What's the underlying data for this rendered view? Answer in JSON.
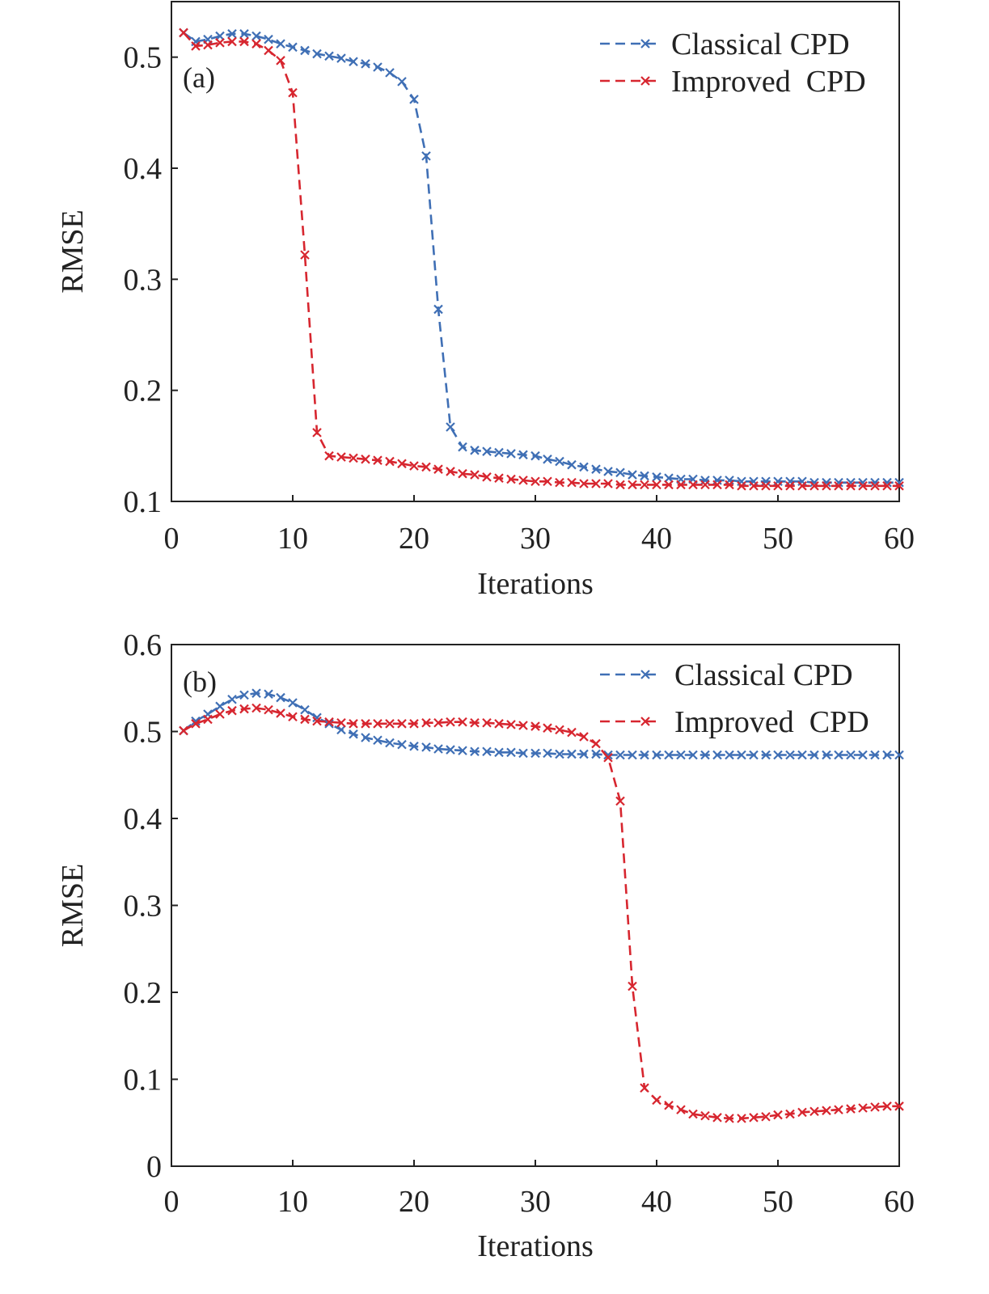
{
  "colors": {
    "classical": "#3f6fb5",
    "improved": "#d7262f",
    "axis": "#222222"
  },
  "chart_data": [
    {
      "type": "line",
      "panel_label": "(a)",
      "xlabel": "Iterations",
      "ylabel": "RMSE",
      "xlim": [
        0,
        60
      ],
      "ylim": [
        0.1,
        0.55
      ],
      "xticks": [
        0,
        10,
        20,
        30,
        40,
        50,
        60
      ],
      "xtick_labels": [
        "0",
        "10",
        "20",
        "30",
        "40",
        "50",
        "60"
      ],
      "yticks": [
        0.1,
        0.2,
        0.3,
        0.4,
        0.5
      ],
      "ytick_labels": [
        "0.1",
        "0.2",
        "0.3",
        "0.4",
        "0.5"
      ],
      "legend_position": "top-right",
      "series": [
        {
          "name": "Classical CPD",
          "x": [
            1,
            2,
            3,
            4,
            5,
            6,
            7,
            8,
            9,
            10,
            11,
            12,
            13,
            14,
            15,
            16,
            17,
            18,
            19,
            20,
            21,
            22,
            23,
            24,
            25,
            26,
            27,
            28,
            29,
            30,
            31,
            32,
            33,
            34,
            35,
            36,
            37,
            38,
            39,
            40,
            41,
            42,
            43,
            44,
            45,
            46,
            47,
            48,
            49,
            50,
            51,
            52,
            53,
            54,
            55,
            56,
            57,
            58,
            59,
            60
          ],
          "y": [
            0.522,
            0.514,
            0.516,
            0.519,
            0.521,
            0.521,
            0.519,
            0.516,
            0.512,
            0.509,
            0.506,
            0.503,
            0.501,
            0.499,
            0.496,
            0.494,
            0.491,
            0.486,
            0.478,
            0.462,
            0.411,
            0.273,
            0.167,
            0.149,
            0.146,
            0.145,
            0.144,
            0.143,
            0.142,
            0.141,
            0.138,
            0.136,
            0.133,
            0.131,
            0.129,
            0.127,
            0.126,
            0.124,
            0.123,
            0.122,
            0.121,
            0.12,
            0.12,
            0.119,
            0.119,
            0.119,
            0.118,
            0.118,
            0.118,
            0.118,
            0.118,
            0.118,
            0.117,
            0.117,
            0.117,
            0.117,
            0.117,
            0.117,
            0.117,
            0.117
          ]
        },
        {
          "name": "Improved  CPD",
          "x": [
            1,
            2,
            3,
            4,
            5,
            6,
            7,
            8,
            9,
            10,
            11,
            12,
            13,
            14,
            15,
            16,
            17,
            18,
            19,
            20,
            21,
            22,
            23,
            24,
            25,
            26,
            27,
            28,
            29,
            30,
            31,
            32,
            33,
            34,
            35,
            36,
            37,
            38,
            39,
            40,
            41,
            42,
            43,
            44,
            45,
            46,
            47,
            48,
            49,
            50,
            51,
            52,
            53,
            54,
            55,
            56,
            57,
            58,
            59,
            60
          ],
          "y": [
            0.522,
            0.51,
            0.511,
            0.513,
            0.514,
            0.514,
            0.512,
            0.506,
            0.497,
            0.468,
            0.322,
            0.162,
            0.141,
            0.14,
            0.139,
            0.138,
            0.137,
            0.136,
            0.134,
            0.132,
            0.131,
            0.129,
            0.127,
            0.125,
            0.124,
            0.122,
            0.121,
            0.12,
            0.119,
            0.118,
            0.118,
            0.117,
            0.117,
            0.116,
            0.116,
            0.116,
            0.115,
            0.115,
            0.115,
            0.115,
            0.115,
            0.115,
            0.115,
            0.115,
            0.115,
            0.115,
            0.114,
            0.114,
            0.114,
            0.114,
            0.114,
            0.114,
            0.114,
            0.114,
            0.114,
            0.114,
            0.114,
            0.114,
            0.114,
            0.114
          ]
        }
      ]
    },
    {
      "type": "line",
      "panel_label": "(b)",
      "xlabel": "Iterations",
      "ylabel": "RMSE",
      "xlim": [
        0,
        60
      ],
      "ylim": [
        0,
        0.6
      ],
      "xticks": [
        0,
        10,
        20,
        30,
        40,
        50,
        60
      ],
      "xtick_labels": [
        "0",
        "10",
        "20",
        "30",
        "40",
        "50",
        "60"
      ],
      "yticks": [
        0,
        0.1,
        0.2,
        0.3,
        0.4,
        0.5,
        0.6
      ],
      "ytick_labels": [
        "0",
        "0.1",
        "0.2",
        "0.3",
        "0.4",
        "0.5",
        "0.6"
      ],
      "legend_position": "top-right",
      "series": [
        {
          "name": "Classical CPD",
          "x": [
            1,
            2,
            3,
            4,
            5,
            6,
            7,
            8,
            9,
            10,
            11,
            12,
            13,
            14,
            15,
            16,
            17,
            18,
            19,
            20,
            21,
            22,
            23,
            24,
            25,
            26,
            27,
            28,
            29,
            30,
            31,
            32,
            33,
            34,
            35,
            36,
            37,
            38,
            39,
            40,
            41,
            42,
            43,
            44,
            45,
            46,
            47,
            48,
            49,
            50,
            51,
            52,
            53,
            54,
            55,
            56,
            57,
            58,
            59,
            60
          ],
          "y": [
            0.501,
            0.512,
            0.52,
            0.529,
            0.537,
            0.542,
            0.544,
            0.543,
            0.539,
            0.533,
            0.525,
            0.516,
            0.509,
            0.502,
            0.497,
            0.493,
            0.49,
            0.487,
            0.485,
            0.483,
            0.482,
            0.48,
            0.479,
            0.478,
            0.477,
            0.477,
            0.476,
            0.476,
            0.475,
            0.475,
            0.475,
            0.474,
            0.474,
            0.474,
            0.474,
            0.473,
            0.473,
            0.473,
            0.473,
            0.473,
            0.473,
            0.473,
            0.473,
            0.473,
            0.473,
            0.473,
            0.473,
            0.473,
            0.473,
            0.473,
            0.473,
            0.473,
            0.473,
            0.473,
            0.473,
            0.473,
            0.473,
            0.473,
            0.473,
            0.473
          ]
        },
        {
          "name": "Improved  CPD",
          "x": [
            1,
            2,
            3,
            4,
            5,
            6,
            7,
            8,
            9,
            10,
            11,
            12,
            13,
            14,
            15,
            16,
            17,
            18,
            19,
            20,
            21,
            22,
            23,
            24,
            25,
            26,
            27,
            28,
            29,
            30,
            31,
            32,
            33,
            34,
            35,
            36,
            37,
            38,
            39,
            40,
            41,
            42,
            43,
            44,
            45,
            46,
            47,
            48,
            49,
            50,
            51,
            52,
            53,
            54,
            55,
            56,
            57,
            58,
            59,
            60
          ],
          "y": [
            0.501,
            0.509,
            0.514,
            0.52,
            0.524,
            0.526,
            0.527,
            0.525,
            0.521,
            0.517,
            0.514,
            0.512,
            0.511,
            0.51,
            0.509,
            0.509,
            0.509,
            0.509,
            0.509,
            0.509,
            0.51,
            0.51,
            0.511,
            0.511,
            0.51,
            0.51,
            0.509,
            0.508,
            0.507,
            0.506,
            0.504,
            0.502,
            0.499,
            0.494,
            0.486,
            0.47,
            0.42,
            0.207,
            0.09,
            0.076,
            0.07,
            0.065,
            0.06,
            0.058,
            0.056,
            0.055,
            0.055,
            0.056,
            0.057,
            0.059,
            0.06,
            0.062,
            0.063,
            0.064,
            0.065,
            0.066,
            0.067,
            0.068,
            0.069,
            0.069
          ]
        }
      ]
    }
  ]
}
